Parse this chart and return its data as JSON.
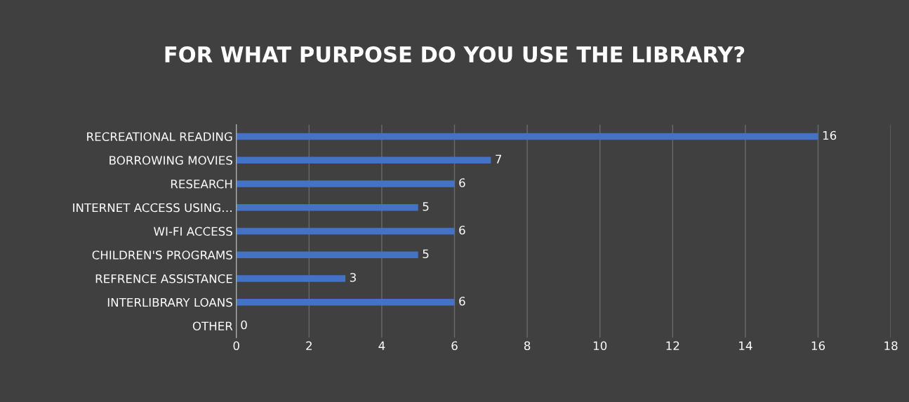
{
  "chart_data": {
    "type": "bar",
    "orientation": "horizontal",
    "title": "FOR WHAT PURPOSE DO YOU USE THE LIBRARY?",
    "categories": [
      "RECREATIONAL READING",
      "BORROWING MOVIES",
      "RESEARCH",
      "INTERNET ACCESS USING…",
      "WI-FI ACCESS",
      "CHILDREN'S PROGRAMS",
      "REFRENCE ASSISTANCE",
      "INTERLIBRARY LOANS",
      "OTHER"
    ],
    "values": [
      16,
      7,
      6,
      5,
      6,
      5,
      3,
      6,
      0
    ],
    "color": "#4472c4",
    "xlim": [
      0,
      18
    ],
    "xticks": [
      0,
      2,
      4,
      6,
      8,
      10,
      12,
      14,
      16,
      18
    ],
    "grid": "x",
    "data_labels": true
  }
}
